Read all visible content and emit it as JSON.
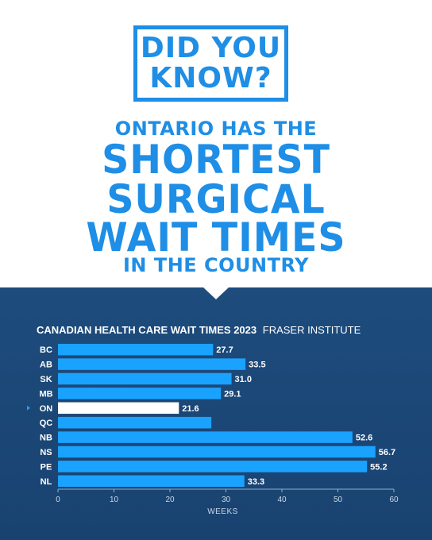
{
  "header": {
    "badge_line1": "DID YOU",
    "badge_line2": "KNOW?",
    "line1": "ONTARIO HAS THE",
    "line2": "SHORTEST",
    "line3": "SURGICAL",
    "line4": "WAIT TIMES",
    "line5": "IN THE COUNTRY"
  },
  "colors": {
    "accent": "#1e8ee6",
    "panel": "#1d4c7d",
    "bar": "#1aa2ff",
    "highlight": "#ffffff"
  },
  "chart_data": {
    "type": "bar",
    "orientation": "horizontal",
    "title": "CANADIAN HEALTH CARE WAIT TIMES 2023",
    "source": "FRASER INSTITUTE",
    "categories": [
      "BC",
      "AB",
      "SK",
      "MB",
      "ON",
      "QC",
      "NB",
      "NS",
      "PE",
      "NL"
    ],
    "values": [
      27.7,
      33.5,
      31.0,
      29.1,
      21.6,
      27.4,
      52.6,
      56.7,
      55.2,
      33.3
    ],
    "value_labels": [
      "27.7",
      "33.5",
      "31.0",
      "29.1",
      "21.6",
      "",
      "52.6",
      "56.7",
      "55.2",
      "33.3"
    ],
    "highlight": "ON",
    "xlabel": "WEEKS",
    "xlim": [
      0,
      60
    ],
    "xticks": [
      "0",
      "10",
      "20",
      "30",
      "40",
      "50",
      "60"
    ],
    "legend": "none",
    "grid": false
  }
}
